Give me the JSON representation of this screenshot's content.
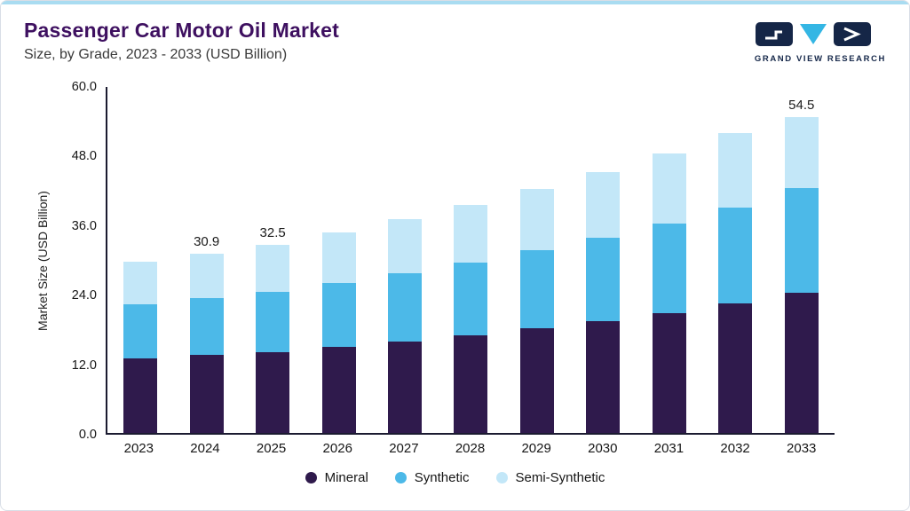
{
  "header": {
    "title": "Passenger Car Motor Oil Market",
    "subtitle": "Size, by Grade, 2023 - 2033 (USD Billion)",
    "logo_text": "GRAND VIEW RESEARCH"
  },
  "colors": {
    "top_strip": "#a9dcf1",
    "title": "#3e1060",
    "axis": "#1b1b30",
    "logo_navy": "#152647",
    "logo_cyan": "#34b6e4"
  },
  "chart_data": {
    "type": "bar",
    "stacked": true,
    "title": "Passenger Car Motor Oil Market",
    "subtitle": "Size, by Grade, 2023 - 2033 (USD Billion)",
    "xlabel": "",
    "ylabel": "Market Size (USD Billion)",
    "ylim": [
      0,
      60
    ],
    "yticks": [
      0,
      12,
      24,
      36,
      48,
      60
    ],
    "ytick_labels": [
      "0.0",
      "12.0",
      "24.0",
      "36.0",
      "48.0",
      "60.0"
    ],
    "grid": false,
    "legend_position": "bottom",
    "categories": [
      "2023",
      "2024",
      "2025",
      "2026",
      "2027",
      "2028",
      "2029",
      "2030",
      "2031",
      "2032",
      "2033"
    ],
    "series": [
      {
        "name": "Mineral",
        "color": "#2f1a4c",
        "values": [
          12.9,
          13.4,
          14.0,
          14.9,
          15.8,
          16.9,
          18.0,
          19.3,
          20.7,
          22.3,
          24.2
        ]
      },
      {
        "name": "Synthetic",
        "color": "#4cb9e8",
        "values": [
          9.3,
          9.8,
          10.4,
          11.0,
          11.8,
          12.6,
          13.5,
          14.4,
          15.5,
          16.6,
          18.1
        ]
      },
      {
        "name": "Semi-Synthetic",
        "color": "#c3e7f8",
        "values": [
          7.3,
          7.7,
          8.1,
          8.7,
          9.3,
          9.9,
          10.6,
          11.3,
          12.1,
          12.9,
          12.2
        ]
      }
    ],
    "totals_labels": [
      "",
      "30.9",
      "32.5",
      "",
      "",
      "",
      "",
      "",
      "",
      "",
      "54.5"
    ]
  }
}
